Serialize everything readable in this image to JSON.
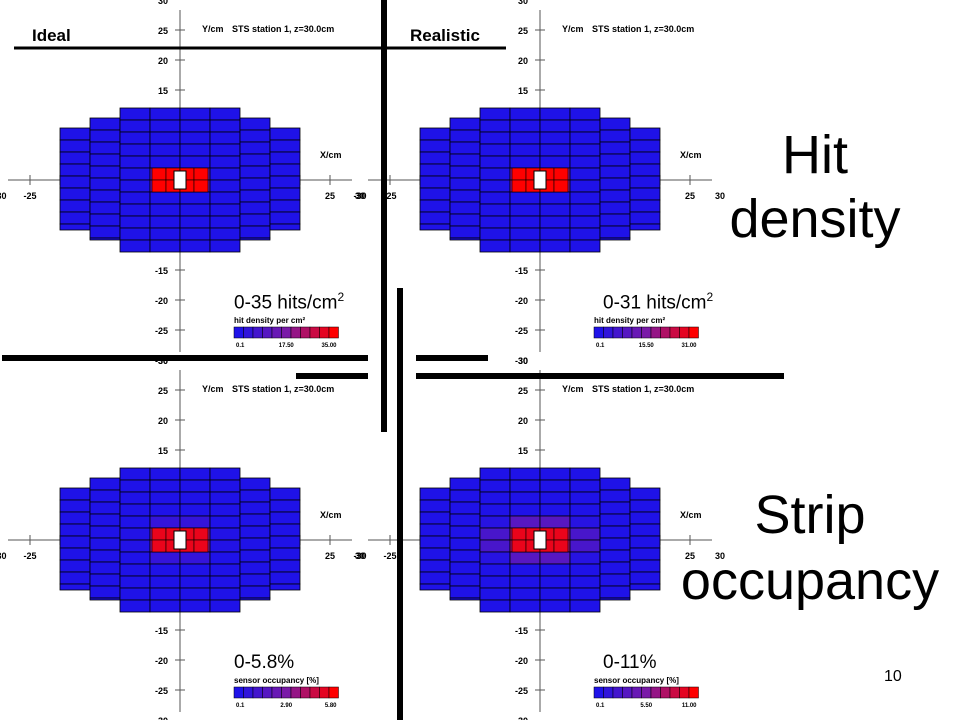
{
  "labels": {
    "ideal": "Ideal",
    "realistic": "Realistic",
    "hit_title_1": "Hit",
    "hit_title_2": "density",
    "strip_title_1": "Strip",
    "strip_title_2": "occupancy",
    "page_number": "10"
  },
  "plot_common": {
    "y_axis_title": "Y/cm",
    "x_axis_title": "X/cm",
    "station_title": "STS station 1, z=30.0cm",
    "y_ticks": [
      "30",
      "25",
      "20",
      "15",
      "-15",
      "-20",
      "-25",
      "-30"
    ],
    "x_ticks": [
      "-30",
      "-25",
      "25",
      "30"
    ]
  },
  "panels": [
    {
      "id": "hit-ideal",
      "range_text": "0-35 hits/cm",
      "range_sup": "2",
      "legend_title": "hit density per cm²",
      "legend_ticks": [
        "0.1",
        "17.50",
        "35.00"
      ],
      "style": "hit",
      "spread": 0.9
    },
    {
      "id": "hit-realistic",
      "range_text": "0-31 hits/cm",
      "range_sup": "2",
      "legend_title": "hit density per cm²",
      "legend_ticks": [
        "0.1",
        "15.50",
        "31.00"
      ],
      "style": "hit",
      "spread": 1.2
    },
    {
      "id": "strip-ideal",
      "range_text": "0-5.8%",
      "range_sup": "",
      "legend_title": "sensor occupancy [%]",
      "legend_ticks": [
        "0.1",
        "2.90",
        "5.80"
      ],
      "style": "strip",
      "spread": 1.6
    },
    {
      "id": "strip-realistic",
      "range_text": "0-11%",
      "range_sup": "",
      "legend_title": "sensor occupancy [%]",
      "legend_ticks": [
        "0.1",
        "5.50",
        "11.00"
      ],
      "style": "strip",
      "spread": 2.1
    }
  ],
  "colors": {
    "low": "#1f12e8",
    "mid": "#7a1aa8",
    "high": "#ff0000",
    "grid": "#000000"
  }
}
